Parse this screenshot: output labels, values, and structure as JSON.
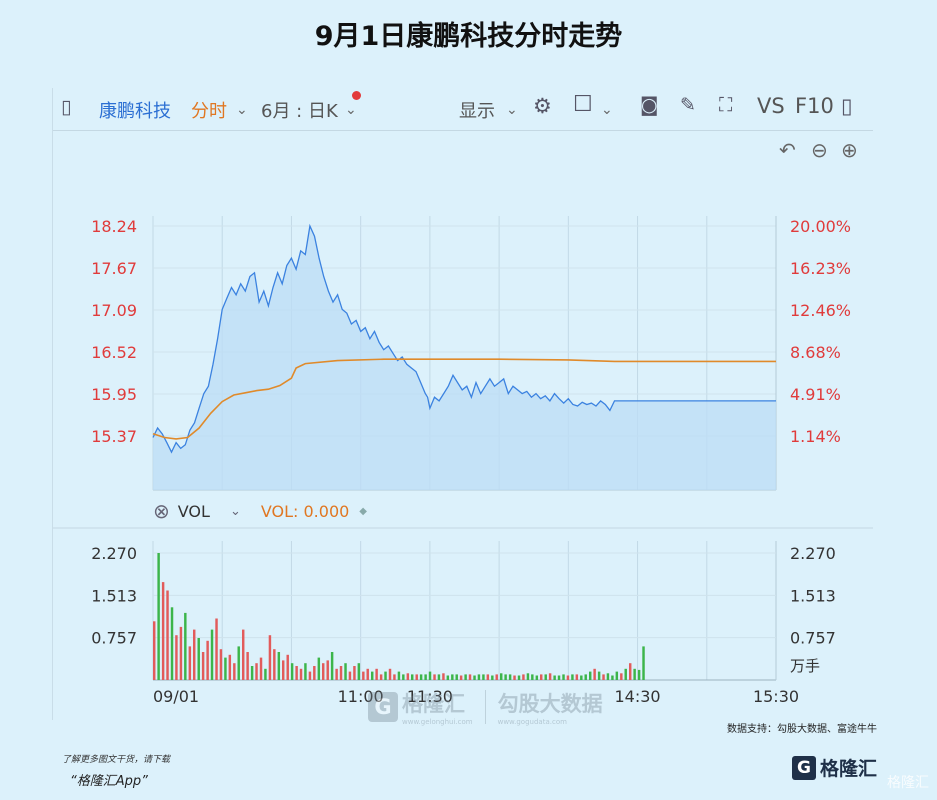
{
  "title": "9月1日康鹏科技分时走势",
  "toolbar": {
    "stock_name": "康鹏科技",
    "period": "分时",
    "kline": "6月 : 日K",
    "display": "显示",
    "vs": "VS",
    "f10": "F10"
  },
  "icons": [
    "sidebar-icon",
    "chevron-down-icon",
    "gear-icon",
    "square-icon",
    "camera-icon",
    "pencil-icon",
    "expand-icon",
    "panel-icon",
    "undo-icon",
    "zoom-out-icon",
    "zoom-in-icon",
    "close-circle-icon",
    "diamond-icon"
  ],
  "colors": {
    "price_line": "#3b82e0",
    "price_fill": "#bcdcf6",
    "avg_line": "#e08a2a",
    "up_bar": "#e25b5b",
    "down_bar": "#3cb54a",
    "axis_red": "#e03b3b",
    "background": "#dcf1fb"
  },
  "volume_header": {
    "indicator": "VOL",
    "value_label": "VOL: 0.000"
  },
  "watermark": {
    "brand": "格隆汇",
    "brand_sub": "www.gelonghui.com",
    "partner": "勾股大数据",
    "partner_sub": "www.gogudata.com"
  },
  "credit": "数据支持：勾股大数据、富途牛牛",
  "footer": {
    "line1": "了解更多图文干货，请下载",
    "line2": "“格隆汇App”",
    "logo": "格隆汇",
    "corner": "格隆汇"
  },
  "chart_data": {
    "type": "line",
    "price_axis": {
      "ticks": [
        "18.24",
        "17.67",
        "17.09",
        "16.52",
        "15.95",
        "15.37"
      ],
      "pct_ticks": [
        "20.00%",
        "16.23%",
        "12.46%",
        "8.68%",
        "4.91%",
        "1.14%"
      ],
      "range": [
        15.0,
        18.24
      ]
    },
    "x_labels": [
      {
        "label": "09/01",
        "min": 0
      },
      {
        "label": "11:00",
        "min": 90
      },
      {
        "label": "11:30",
        "min": 120
      },
      {
        "label": "14:30",
        "min": 210
      },
      {
        "label": "15:30",
        "min": 270
      }
    ],
    "series": [
      {
        "name": "price",
        "points": [
          [
            0,
            15.35
          ],
          [
            2,
            15.48
          ],
          [
            4,
            15.4
          ],
          [
            6,
            15.28
          ],
          [
            8,
            15.15
          ],
          [
            10,
            15.28
          ],
          [
            12,
            15.2
          ],
          [
            14,
            15.25
          ],
          [
            16,
            15.45
          ],
          [
            18,
            15.55
          ],
          [
            20,
            15.75
          ],
          [
            22,
            15.95
          ],
          [
            24,
            16.05
          ],
          [
            26,
            16.35
          ],
          [
            28,
            16.7
          ],
          [
            30,
            17.1
          ],
          [
            32,
            17.25
          ],
          [
            34,
            17.4
          ],
          [
            36,
            17.3
          ],
          [
            38,
            17.45
          ],
          [
            40,
            17.35
          ],
          [
            42,
            17.55
          ],
          [
            44,
            17.6
          ],
          [
            46,
            17.2
          ],
          [
            48,
            17.35
          ],
          [
            50,
            17.15
          ],
          [
            52,
            17.4
          ],
          [
            54,
            17.6
          ],
          [
            56,
            17.45
          ],
          [
            58,
            17.7
          ],
          [
            60,
            17.8
          ],
          [
            62,
            17.65
          ],
          [
            64,
            17.9
          ],
          [
            66,
            17.85
          ],
          [
            68,
            18.24
          ],
          [
            70,
            18.1
          ],
          [
            72,
            17.8
          ],
          [
            74,
            17.55
          ],
          [
            76,
            17.35
          ],
          [
            78,
            17.2
          ],
          [
            80,
            17.3
          ],
          [
            82,
            17.1
          ],
          [
            84,
            17.05
          ],
          [
            86,
            16.9
          ],
          [
            88,
            16.95
          ],
          [
            90,
            16.8
          ],
          [
            92,
            16.85
          ],
          [
            94,
            16.7
          ],
          [
            96,
            16.8
          ],
          [
            98,
            16.65
          ],
          [
            100,
            16.55
          ],
          [
            102,
            16.6
          ],
          [
            104,
            16.5
          ],
          [
            106,
            16.4
          ],
          [
            108,
            16.45
          ],
          [
            110,
            16.35
          ],
          [
            112,
            16.3
          ],
          [
            114,
            16.25
          ],
          [
            116,
            16.1
          ],
          [
            118,
            15.95
          ],
          [
            119,
            15.9
          ],
          [
            120,
            15.75
          ],
          [
            122,
            15.9
          ],
          [
            124,
            15.85
          ],
          [
            126,
            15.95
          ],
          [
            128,
            16.05
          ],
          [
            130,
            16.2
          ],
          [
            132,
            16.1
          ],
          [
            134,
            16.0
          ],
          [
            136,
            16.05
          ],
          [
            138,
            15.9
          ],
          [
            140,
            16.1
          ],
          [
            142,
            15.95
          ],
          [
            144,
            16.05
          ],
          [
            146,
            16.15
          ],
          [
            148,
            16.05
          ],
          [
            150,
            16.1
          ],
          [
            152,
            16.15
          ],
          [
            154,
            15.95
          ],
          [
            156,
            16.05
          ],
          [
            158,
            16.0
          ],
          [
            160,
            15.95
          ],
          [
            162,
            15.98
          ],
          [
            164,
            15.9
          ],
          [
            166,
            15.95
          ],
          [
            168,
            15.88
          ],
          [
            170,
            15.92
          ],
          [
            172,
            15.85
          ],
          [
            174,
            15.95
          ],
          [
            176,
            15.88
          ],
          [
            178,
            15.82
          ],
          [
            180,
            15.88
          ],
          [
            182,
            15.8
          ],
          [
            184,
            15.78
          ],
          [
            186,
            15.83
          ],
          [
            188,
            15.8
          ],
          [
            190,
            15.82
          ],
          [
            192,
            15.78
          ],
          [
            194,
            15.85
          ],
          [
            196,
            15.8
          ],
          [
            198,
            15.72
          ],
          [
            200,
            15.85
          ],
          [
            202,
            15.85
          ],
          [
            205,
            15.85
          ],
          [
            208,
            15.85
          ],
          [
            214,
            15.85
          ]
        ]
      },
      {
        "name": "avg",
        "points": [
          [
            0,
            15.4
          ],
          [
            5,
            15.35
          ],
          [
            10,
            15.33
          ],
          [
            15,
            15.35
          ],
          [
            20,
            15.48
          ],
          [
            25,
            15.68
          ],
          [
            30,
            15.84
          ],
          [
            35,
            15.93
          ],
          [
            40,
            15.96
          ],
          [
            45,
            15.99
          ],
          [
            50,
            16.01
          ],
          [
            55,
            16.06
          ],
          [
            60,
            16.16
          ],
          [
            62,
            16.3
          ],
          [
            66,
            16.36
          ],
          [
            80,
            16.4
          ],
          [
            100,
            16.42
          ],
          [
            120,
            16.42
          ],
          [
            150,
            16.42
          ],
          [
            180,
            16.41
          ],
          [
            200,
            16.39
          ],
          [
            214,
            16.39
          ]
        ]
      }
    ],
    "volume": {
      "axis_ticks": [
        "2.270",
        "1.513",
        "0.757"
      ],
      "unit": "万手",
      "max": 2.27,
      "bars": [
        1.05,
        2.27,
        1.75,
        1.6,
        1.3,
        0.8,
        0.95,
        1.2,
        0.6,
        0.9,
        0.75,
        0.5,
        0.7,
        0.9,
        1.1,
        0.55,
        0.4,
        0.45,
        0.3,
        0.6,
        0.9,
        0.5,
        0.25,
        0.3,
        0.4,
        0.2,
        0.8,
        0.55,
        0.5,
        0.35,
        0.45,
        0.3,
        0.25,
        0.2,
        0.3,
        0.15,
        0.25,
        0.4,
        0.3,
        0.35,
        0.5,
        0.2,
        0.25,
        0.3,
        0.15,
        0.25,
        0.3,
        0.15,
        0.2,
        0.15,
        0.2,
        0.1,
        0.15,
        0.2,
        0.1,
        0.15,
        0.1,
        0.12,
        0.1,
        0.1,
        0.1,
        0.1,
        0.15,
        0.1,
        0.1,
        0.12,
        0.08,
        0.1,
        0.1,
        0.08,
        0.1,
        0.1,
        0.08,
        0.1,
        0.1,
        0.1,
        0.08,
        0.1,
        0.12,
        0.1,
        0.1,
        0.08,
        0.08,
        0.1,
        0.12,
        0.1,
        0.08,
        0.1,
        0.1,
        0.12,
        0.08,
        0.08,
        0.1,
        0.08,
        0.1,
        0.1,
        0.08,
        0.1,
        0.15,
        0.2,
        0.15,
        0.1,
        0.12,
        0.08,
        0.15,
        0.12,
        0.2,
        0.3,
        0.2,
        0.18,
        0.6
      ]
    }
  }
}
